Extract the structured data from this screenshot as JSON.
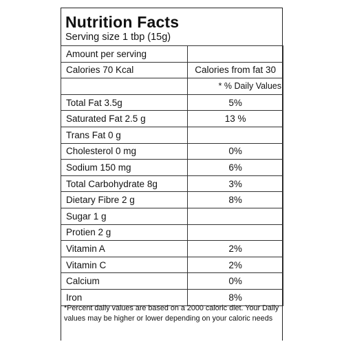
{
  "label": {
    "title": "Nutrition Facts",
    "serving_size": "Serving size 1 tbp (15g)",
    "amount_per_serving": "Amount per serving",
    "calories": "Calories 70 Kcal",
    "calories_from_fat": "Calories from fat 30",
    "daily_values_header": "* % Daily Values",
    "rows": [
      {
        "nutrient": "Total Fat 3.5g",
        "dv": "5%"
      },
      {
        "nutrient": "Saturated Fat 2.5 g",
        "dv": "13 %"
      },
      {
        "nutrient": "Trans Fat 0 g",
        "dv": ""
      },
      {
        "nutrient": "Cholesterol 0 mg",
        "dv": "0%"
      },
      {
        "nutrient": "Sodium 150 mg",
        "dv": "6%"
      },
      {
        "nutrient": "Total Carbohydrate 8g",
        "dv": "3%"
      },
      {
        "nutrient": "Dietary Fibre 2 g",
        "dv": "8%"
      },
      {
        "nutrient": "Sugar 1 g",
        "dv": ""
      },
      {
        "nutrient": "Protien 2 g",
        "dv": ""
      },
      {
        "nutrient": "Vitamin A",
        "dv": "2%"
      },
      {
        "nutrient": "Vitamin C",
        "dv": "2%"
      },
      {
        "nutrient": "Calcium",
        "dv": "0%"
      },
      {
        "nutrient": "Iron",
        "dv": "8%"
      }
    ],
    "footnote": "*Percent daily values are based on a 2000  caloric diet. Your Daily values may be higher or lower depending on your caloric needs"
  }
}
